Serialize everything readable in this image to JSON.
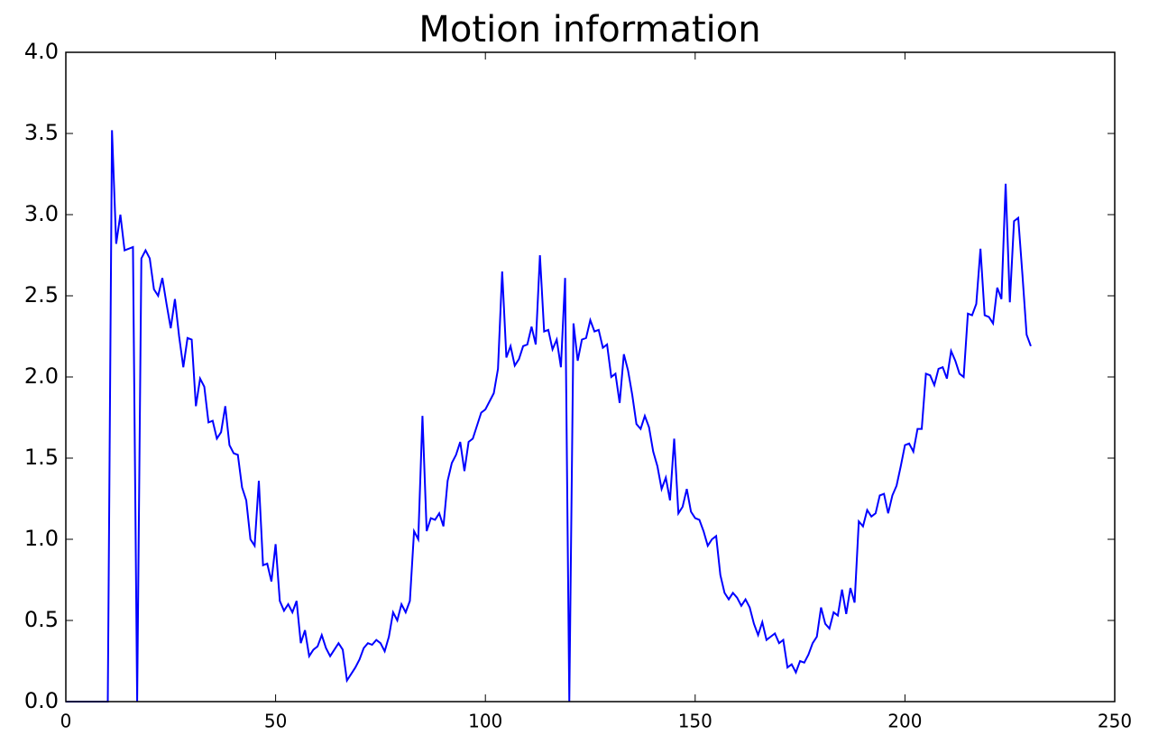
{
  "chart_data": {
    "type": "line",
    "title": "Motion information",
    "x": [
      0,
      1,
      2,
      3,
      4,
      5,
      6,
      7,
      8,
      9,
      10,
      11,
      12,
      13,
      14,
      15,
      16,
      17,
      18,
      19,
      20,
      21,
      22,
      23,
      24,
      25,
      26,
      27,
      28,
      29,
      30,
      31,
      32,
      33,
      34,
      35,
      36,
      37,
      38,
      39,
      40,
      41,
      42,
      43,
      44,
      45,
      46,
      47,
      48,
      49,
      50,
      51,
      52,
      53,
      54,
      55,
      56,
      57,
      58,
      59,
      60,
      61,
      62,
      63,
      64,
      65,
      66,
      67,
      68,
      69,
      70,
      71,
      72,
      73,
      74,
      75,
      76,
      77,
      78,
      79,
      80,
      81,
      82,
      83,
      84,
      85,
      86,
      87,
      88,
      89,
      90,
      91,
      92,
      93,
      94,
      95,
      96,
      97,
      98,
      99,
      100,
      101,
      102,
      103,
      104,
      105,
      106,
      107,
      108,
      109,
      110,
      111,
      112,
      113,
      114,
      115,
      116,
      117,
      118,
      119,
      120,
      121,
      122,
      123,
      124,
      125,
      126,
      127,
      128,
      129,
      130,
      131,
      132,
      133,
      134,
      135,
      136,
      137,
      138,
      139,
      140,
      141,
      142,
      143,
      144,
      145,
      146,
      147,
      148,
      149,
      150,
      151,
      152,
      153,
      154,
      155,
      156,
      157,
      158,
      159,
      160,
      161,
      162,
      163,
      164,
      165,
      166,
      167,
      168,
      169,
      170,
      171,
      172,
      173,
      174,
      175,
      176,
      177,
      178,
      179,
      180,
      181,
      182,
      183,
      184,
      185,
      186,
      187,
      188,
      189,
      190,
      191,
      192,
      193,
      194,
      195,
      196,
      197,
      198,
      199,
      200,
      201,
      202,
      203,
      204,
      205,
      206,
      207,
      208,
      209,
      210,
      211,
      212,
      213,
      214,
      215,
      216,
      217,
      218,
      219,
      220,
      221,
      222,
      223,
      224,
      225,
      226,
      227,
      228,
      229,
      230
    ],
    "values": [
      0,
      0,
      0,
      0,
      0,
      0,
      0,
      0,
      0,
      0,
      0,
      3.52,
      2.82,
      3.0,
      2.78,
      2.79,
      2.8,
      0,
      2.73,
      2.78,
      2.73,
      2.54,
      2.5,
      2.61,
      2.45,
      2.3,
      2.48,
      2.25,
      2.06,
      2.24,
      2.23,
      1.82,
      1.99,
      1.94,
      1.72,
      1.73,
      1.62,
      1.66,
      1.82,
      1.58,
      1.53,
      1.52,
      1.32,
      1.24,
      1.0,
      0.96,
      1.36,
      0.84,
      0.85,
      0.74,
      0.97,
      0.62,
      0.56,
      0.6,
      0.55,
      0.62,
      0.36,
      0.44,
      0.28,
      0.32,
      0.34,
      0.41,
      0.33,
      0.28,
      0.32,
      0.36,
      0.32,
      0.13,
      0.17,
      0.21,
      0.26,
      0.33,
      0.36,
      0.35,
      0.38,
      0.36,
      0.31,
      0.4,
      0.55,
      0.5,
      0.6,
      0.55,
      0.62,
      1.05,
      1.0,
      1.76,
      1.05,
      1.13,
      1.12,
      1.16,
      1.08,
      1.36,
      1.47,
      1.52,
      1.6,
      1.42,
      1.6,
      1.62,
      1.7,
      1.78,
      1.8,
      1.85,
      1.9,
      2.05,
      2.65,
      2.12,
      2.19,
      2.07,
      2.11,
      2.19,
      2.2,
      2.31,
      2.2,
      2.75,
      2.28,
      2.29,
      2.17,
      2.23,
      2.06,
      2.61,
      0,
      2.33,
      2.1,
      2.23,
      2.24,
      2.35,
      2.28,
      2.29,
      2.18,
      2.2,
      2.0,
      2.02,
      1.84,
      2.14,
      2.04,
      1.89,
      1.71,
      1.68,
      1.76,
      1.69,
      1.54,
      1.45,
      1.31,
      1.38,
      1.24,
      1.62,
      1.16,
      1.2,
      1.31,
      1.17,
      1.13,
      1.12,
      1.05,
      0.96,
      1.0,
      1.02,
      0.78,
      0.67,
      0.63,
      0.67,
      0.64,
      0.59,
      0.63,
      0.58,
      0.48,
      0.41,
      0.49,
      0.38,
      0.4,
      0.42,
      0.36,
      0.38,
      0.21,
      0.23,
      0.18,
      0.25,
      0.24,
      0.29,
      0.36,
      0.4,
      0.58,
      0.48,
      0.45,
      0.55,
      0.53,
      0.69,
      0.54,
      0.7,
      0.61,
      1.11,
      1.08,
      1.18,
      1.14,
      1.16,
      1.27,
      1.28,
      1.16,
      1.27,
      1.33,
      1.45,
      1.58,
      1.59,
      1.54,
      1.68,
      1.68,
      2.02,
      2.01,
      1.95,
      2.05,
      2.06,
      1.99,
      2.16,
      2.1,
      2.02,
      2.0,
      2.39,
      2.38,
      2.45,
      2.79,
      2.38,
      2.37,
      2.33,
      2.55,
      2.48,
      3.19,
      2.46,
      2.96,
      2.98,
      2.63,
      2.26,
      2.19
    ],
    "color": "#0000ff",
    "xlim": [
      0,
      250
    ],
    "xticks": [
      0,
      50,
      100,
      150,
      200,
      250
    ],
    "ylim": [
      0,
      4
    ],
    "yticks": [
      {
        "value": 0,
        "label": "0.0"
      },
      {
        "value": 0.5,
        "label": "0.5"
      },
      {
        "value": 1,
        "label": "1.0"
      },
      {
        "value": 1.5,
        "label": "1.5"
      },
      {
        "value": 2,
        "label": "2.0"
      },
      {
        "value": 2.5,
        "label": "2.5"
      },
      {
        "value": 3,
        "label": "3.0"
      },
      {
        "value": 3.5,
        "label": "3.5"
      },
      {
        "value": 4,
        "label": "4.0"
      }
    ]
  }
}
